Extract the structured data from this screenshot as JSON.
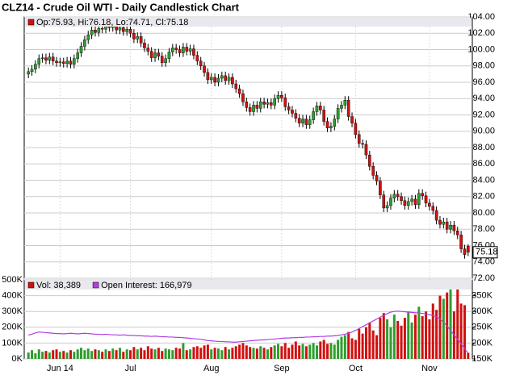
{
  "chart_data": [
    {
      "type": "candlestick",
      "title": "CLZ14 - Crude Oil WTI - Daily Candlestick Chart",
      "legend_text": "Op:75.93, Hi:76.18, Lo:74.71, Cl:75.18",
      "legend_color": "#d01010",
      "up_color": "#2e9e2e",
      "down_color": "#d01010",
      "categories": [
        null,
        null,
        null,
        null,
        null,
        null,
        null,
        null,
        null,
        "Jun 14",
        null,
        null,
        null,
        null,
        null,
        null,
        null,
        null,
        null,
        null,
        null,
        null,
        null,
        null,
        null,
        null,
        null,
        null,
        null,
        "Jul",
        null,
        null,
        null,
        null,
        null,
        null,
        null,
        null,
        null,
        null,
        null,
        null,
        null,
        null,
        null,
        null,
        null,
        null,
        null,
        null,
        null,
        null,
        "Aug",
        null,
        null,
        null,
        null,
        null,
        null,
        null,
        null,
        null,
        null,
        null,
        null,
        null,
        null,
        null,
        null,
        null,
        null,
        null,
        "Sep",
        null,
        null,
        null,
        null,
        null,
        null,
        null,
        null,
        null,
        null,
        null,
        null,
        null,
        null,
        null,
        null,
        null,
        null,
        null,
        null,
        "Oct",
        null,
        null,
        null,
        null,
        null,
        null,
        null,
        null,
        null,
        null,
        null,
        null,
        null,
        null,
        null,
        null,
        null,
        null,
        null,
        null,
        "Nov",
        null,
        null,
        null,
        null,
        null,
        null,
        null,
        null,
        null,
        null,
        null
      ],
      "open": [
        97.0,
        97.3,
        97.6,
        98.2,
        98.9,
        99.0,
        98.7,
        99.1,
        98.6,
        98.4,
        98.5,
        98.3,
        98.6,
        98.2,
        98.9,
        99.6,
        100.4,
        101.2,
        101.8,
        102.4,
        102.1,
        102.6,
        102.5,
        103.0,
        102.7,
        102.9,
        102.4,
        102.7,
        102.2,
        102.5,
        102.0,
        101.3,
        101.6,
        100.8,
        100.2,
        99.8,
        99.0,
        99.6,
        99.2,
        98.4,
        98.9,
        99.7,
        100.2,
        100.0,
        99.6,
        100.3,
        99.8,
        100.1,
        99.3,
        98.6,
        98.0,
        97.2,
        96.3,
        96.6,
        96.0,
        96.5,
        96.8,
        96.2,
        96.6,
        95.8,
        95.2,
        94.6,
        93.6,
        92.9,
        92.4,
        93.2,
        92.8,
        93.6,
        93.3,
        93.5,
        93.2,
        94.0,
        94.4,
        94.1,
        93.0,
        92.6,
        92.2,
        91.6,
        91.0,
        91.5,
        90.8,
        91.4,
        92.4,
        93.1,
        92.6,
        91.2,
        90.4,
        90.6,
        91.5,
        92.8,
        93.2,
        93.8,
        91.8,
        91.0,
        89.6,
        88.5,
        88.4,
        87.1,
        85.7,
        84.6,
        83.9,
        82.2,
        80.6,
        80.9,
        81.8,
        82.3,
        82.0,
        81.5,
        80.9,
        81.4,
        81.7,
        81.0,
        82.4,
        82.1,
        81.2,
        80.8,
        80.3,
        79.1,
        78.6,
        78.9,
        78.0,
        78.5,
        77.8,
        77.3,
        75.6,
        75.93
      ],
      "high": [
        97.8,
        98.1,
        98.7,
        99.4,
        99.5,
        99.5,
        99.6,
        99.6,
        99.1,
        99.0,
        99.0,
        99.1,
        99.1,
        99.4,
        100.1,
        100.9,
        101.7,
        102.3,
        102.9,
        102.9,
        103.1,
        103.1,
        103.5,
        103.5,
        103.4,
        103.4,
        103.2,
        103.2,
        103.0,
        103.0,
        102.5,
        102.1,
        102.1,
        101.3,
        100.7,
        100.3,
        100.1,
        100.1,
        99.7,
        99.4,
        100.2,
        100.7,
        100.7,
        100.5,
        100.8,
        100.8,
        100.6,
        100.6,
        99.8,
        99.1,
        98.5,
        97.7,
        97.1,
        97.1,
        97.0,
        97.3,
        97.3,
        97.1,
        97.1,
        96.3,
        95.7,
        95.1,
        94.1,
        93.4,
        93.7,
        93.7,
        94.1,
        94.1,
        94.0,
        94.0,
        94.5,
        94.9,
        94.9,
        94.6,
        93.5,
        93.1,
        92.7,
        92.1,
        92.0,
        92.0,
        91.9,
        92.9,
        93.6,
        93.6,
        93.1,
        91.7,
        91.1,
        92.0,
        93.3,
        93.7,
        94.3,
        94.3,
        92.3,
        91.5,
        90.1,
        89.0,
        88.9,
        87.6,
        86.2,
        85.1,
        84.4,
        82.7,
        81.4,
        82.3,
        82.8,
        82.8,
        82.5,
        82.0,
        81.9,
        82.2,
        82.2,
        82.9,
        82.9,
        82.6,
        81.7,
        81.3,
        80.8,
        79.6,
        79.4,
        79.4,
        79.0,
        79.0,
        78.3,
        77.8,
        76.1,
        76.18
      ],
      "low": [
        96.5,
        96.8,
        97.1,
        97.7,
        98.4,
        98.2,
        98.2,
        98.1,
        97.9,
        97.9,
        97.8,
        97.8,
        97.7,
        97.7,
        98.4,
        99.1,
        99.9,
        100.7,
        101.3,
        101.6,
        101.6,
        102.0,
        102.0,
        102.2,
        102.2,
        101.9,
        101.9,
        101.7,
        101.7,
        101.5,
        100.8,
        100.8,
        100.3,
        99.7,
        99.3,
        98.5,
        98.5,
        98.7,
        97.9,
        97.9,
        98.4,
        99.2,
        99.5,
        99.1,
        99.1,
        99.3,
        99.3,
        98.8,
        98.1,
        97.5,
        96.7,
        95.8,
        95.8,
        95.5,
        95.5,
        96.0,
        95.7,
        95.7,
        95.3,
        94.7,
        94.1,
        93.1,
        92.4,
        91.9,
        91.9,
        92.3,
        92.3,
        92.8,
        92.8,
        92.7,
        92.7,
        93.5,
        93.6,
        92.5,
        92.1,
        91.7,
        91.1,
        90.5,
        90.5,
        90.3,
        90.3,
        90.9,
        91.9,
        92.1,
        90.7,
        89.9,
        89.9,
        90.1,
        91.0,
        92.3,
        92.7,
        91.3,
        90.5,
        89.1,
        88.0,
        87.9,
        86.6,
        85.2,
        84.1,
        83.4,
        81.7,
        80.1,
        80.1,
        80.4,
        81.3,
        81.5,
        81.0,
        80.4,
        80.4,
        80.9,
        80.5,
        80.5,
        81.6,
        80.7,
        80.3,
        79.8,
        78.6,
        78.1,
        78.1,
        77.5,
        77.5,
        77.3,
        76.8,
        75.1,
        74.4,
        74.71
      ],
      "close": [
        97.3,
        97.6,
        98.2,
        98.9,
        99.0,
        98.7,
        99.1,
        98.6,
        98.4,
        98.5,
        98.3,
        98.6,
        98.2,
        98.9,
        99.6,
        100.4,
        101.2,
        101.8,
        102.4,
        102.1,
        102.6,
        102.5,
        103.0,
        102.7,
        102.9,
        102.4,
        102.7,
        102.2,
        102.5,
        102.0,
        101.3,
        101.6,
        100.8,
        100.2,
        99.8,
        99.0,
        99.6,
        99.2,
        98.4,
        98.9,
        99.7,
        100.2,
        100.0,
        99.6,
        100.3,
        99.8,
        100.1,
        99.3,
        98.6,
        98.0,
        97.2,
        96.3,
        96.6,
        96.0,
        96.5,
        96.8,
        96.2,
        96.6,
        95.8,
        95.2,
        94.6,
        93.6,
        92.9,
        92.4,
        93.2,
        92.8,
        93.6,
        93.3,
        93.5,
        93.2,
        94.0,
        94.4,
        94.1,
        93.0,
        92.6,
        92.2,
        91.6,
        91.0,
        91.5,
        90.8,
        91.4,
        92.4,
        93.1,
        92.6,
        91.2,
        90.4,
        90.6,
        91.5,
        92.8,
        93.2,
        93.8,
        91.8,
        91.0,
        89.6,
        88.5,
        88.4,
        87.1,
        85.7,
        84.6,
        83.9,
        82.2,
        80.6,
        80.9,
        81.8,
        82.3,
        82.0,
        81.5,
        80.9,
        81.4,
        81.7,
        81.0,
        82.4,
        82.1,
        81.2,
        80.8,
        80.3,
        79.1,
        78.6,
        78.9,
        78.0,
        78.5,
        77.8,
        77.3,
        75.6,
        74.9,
        75.18
      ],
      "ylim": [
        72,
        104
      ],
      "yticks": [
        {
          "value": 72,
          "label": "72.00"
        },
        {
          "value": 74,
          "label": "74.00"
        },
        {
          "value": 76,
          "label": "76.00"
        },
        {
          "value": 78,
          "label": "78.00"
        },
        {
          "value": 80,
          "label": "80.00"
        },
        {
          "value": 82,
          "label": "82.00"
        },
        {
          "value": 84,
          "label": "84.00"
        },
        {
          "value": 86,
          "label": "86.00"
        },
        {
          "value": 88,
          "label": "88.00"
        },
        {
          "value": 90,
          "label": "90.00"
        },
        {
          "value": 92,
          "label": "92.00"
        },
        {
          "value": 94,
          "label": "94.00"
        },
        {
          "value": 96,
          "label": "96.00"
        },
        {
          "value": 98,
          "label": "98.00"
        },
        {
          "value": 100,
          "label": "100.00"
        },
        {
          "value": 102,
          "label": "102.00"
        },
        {
          "value": 104,
          "label": "104.00"
        }
      ],
      "grid": true
    },
    {
      "type": "bar",
      "series": [
        {
          "name": "Vol",
          "legend_text": "Vol: 38,389",
          "color": "#d01010",
          "values": [
            40000,
            55000,
            35000,
            60000,
            45000,
            50000,
            40000,
            55000,
            60000,
            45000,
            50000,
            40000,
            55000,
            45000,
            60000,
            70000,
            55000,
            65000,
            50000,
            60000,
            55000,
            45000,
            60000,
            50000,
            65000,
            55000,
            70000,
            45000,
            60000,
            55000,
            75000,
            60000,
            70000,
            55000,
            80000,
            65000,
            60000,
            70000,
            50000,
            65000,
            60000,
            55000,
            70000,
            65000,
            100000,
            55000,
            60000,
            75000,
            80000,
            70000,
            85000,
            90000,
            60000,
            70000,
            65000,
            55000,
            75000,
            60000,
            70000,
            80000,
            90000,
            100000,
            85000,
            75000,
            70000,
            65000,
            80000,
            70000,
            60000,
            75000,
            85000,
            95000,
            80000,
            100000,
            70000,
            90000,
            110000,
            85000,
            95000,
            80000,
            90000,
            100000,
            85000,
            110000,
            120000,
            95000,
            100000,
            90000,
            120000,
            140000,
            150000,
            170000,
            130000,
            120000,
            190000,
            160000,
            200000,
            230000,
            180000,
            150000,
            260000,
            290000,
            250000,
            200000,
            280000,
            240000,
            210000,
            260000,
            300000,
            230000,
            280000,
            330000,
            270000,
            300000,
            250000,
            350000,
            310000,
            400000,
            380000,
            420000,
            440000,
            300000,
            460000,
            350000,
            340000,
            38389
          ]
        },
        {
          "name": "Open Interest",
          "legend_text": "Open Interest: 166,979",
          "color": "#b040e0",
          "axis": "y2",
          "values": [
            225000,
            228000,
            232000,
            235000,
            234000,
            233000,
            232000,
            231000,
            230000,
            230000,
            229000,
            230000,
            231000,
            230000,
            229000,
            230000,
            231000,
            230000,
            229000,
            228000,
            228000,
            227000,
            228000,
            227000,
            226000,
            226000,
            225000,
            226000,
            225000,
            224000,
            224000,
            223000,
            223000,
            222000,
            222000,
            221000,
            222000,
            221000,
            220000,
            220000,
            219000,
            219000,
            218000,
            218000,
            217000,
            216000,
            215000,
            214000,
            213000,
            212000,
            210000,
            208000,
            207000,
            206000,
            205000,
            205000,
            204000,
            204000,
            203000,
            203000,
            204000,
            205000,
            206000,
            207000,
            208000,
            209000,
            210000,
            210000,
            211000,
            212000,
            213000,
            214000,
            215000,
            216000,
            216000,
            217000,
            217000,
            218000,
            218000,
            219000,
            219000,
            220000,
            220000,
            221000,
            221000,
            222000,
            222000,
            223000,
            224000,
            226000,
            228000,
            231000,
            235000,
            240000,
            246000,
            252000,
            258000,
            264000,
            270000,
            276000,
            282000,
            288000,
            293000,
            298000,
            300000,
            301000,
            300000,
            299000,
            298000,
            297000,
            296000,
            295000,
            294000,
            292000,
            290000,
            287000,
            283000,
            276000,
            266000,
            254000,
            240000,
            226000,
            212000,
            198000,
            183000,
            166979
          ]
        }
      ],
      "ylim": [
        0,
        500000
      ],
      "yticks": [
        {
          "value": 0,
          "label": "0K"
        },
        {
          "value": 100000,
          "label": "100K"
        },
        {
          "value": 200000,
          "label": "200K"
        },
        {
          "value": 300000,
          "label": "300K"
        },
        {
          "value": 400000,
          "label": "400K"
        },
        {
          "value": 500000,
          "label": "500K"
        }
      ],
      "y2lim": [
        150000,
        400000
      ],
      "y2ticks": [
        {
          "value": 150000,
          "label": "150K"
        },
        {
          "value": 200000,
          "label": "200K"
        },
        {
          "value": 250000,
          "label": "250K"
        },
        {
          "value": 300000,
          "label": "300K"
        },
        {
          "value": 350000,
          "label": "350K"
        }
      ],
      "grid": true
    }
  ]
}
